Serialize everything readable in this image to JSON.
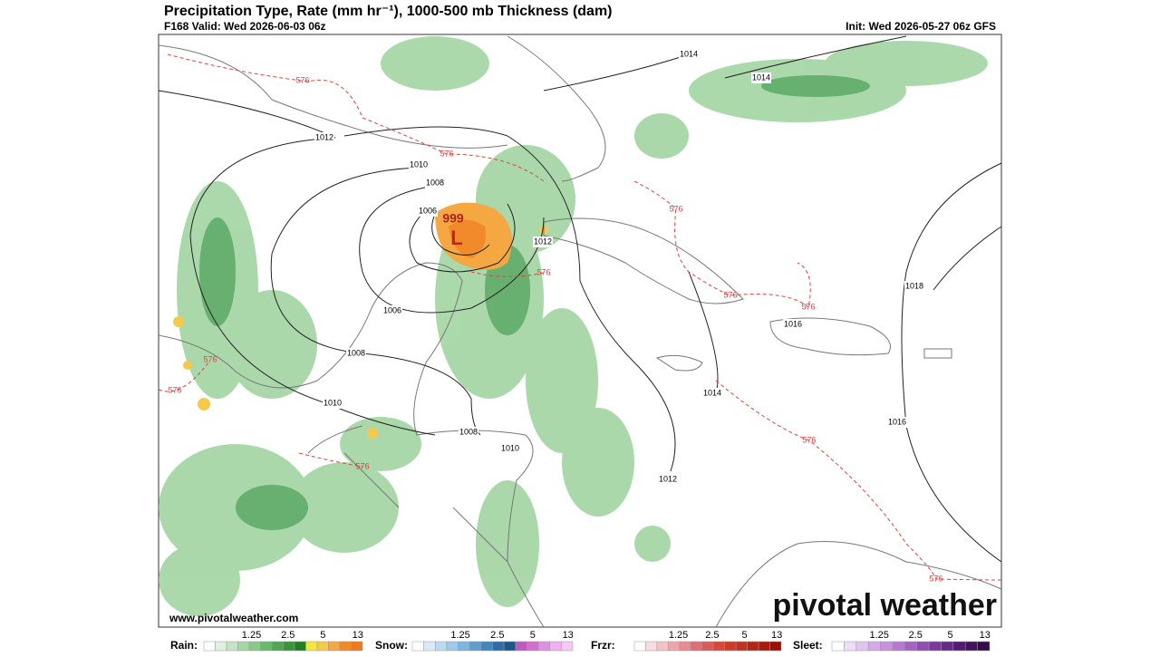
{
  "header": {
    "title": "Precipitation Type, Rate (mm hr⁻¹), 1000-500 mb Thickness (dam)",
    "valid": "F168 Valid: Wed 2026-06-03 06z",
    "init": "Init: Wed 2026-05-27 06z GFS"
  },
  "map": {
    "low": {
      "pressure": "999",
      "symbol": "L"
    },
    "isobar_labels": [
      "1014",
      "1014",
      "1012",
      "1010",
      "1008",
      "1006",
      "1012",
      "1018",
      "1016",
      "1006",
      "1008",
      "1010",
      "1014",
      "1016",
      "1008",
      "1010",
      "1012"
    ],
    "thickness_labels": [
      "576",
      "576",
      "576",
      "576",
      "576",
      "576",
      "576",
      "576",
      "576",
      "576",
      "576"
    ],
    "website": "www.pivotalweather.com",
    "logo": "pivotal weather"
  },
  "legend": [
    {
      "label": "Rain:",
      "ticks": [
        "1.25",
        "2.5",
        "5",
        "13"
      ]
    },
    {
      "label": "Snow:",
      "ticks": [
        "1.25",
        "2.5",
        "5",
        "13"
      ]
    },
    {
      "label": "Frzr:",
      "ticks": [
        "1.25",
        "2.5",
        "5",
        "13"
      ]
    },
    {
      "label": "Sleet:",
      "ticks": [
        "1.25",
        "2.5",
        "5",
        "13"
      ]
    }
  ]
}
